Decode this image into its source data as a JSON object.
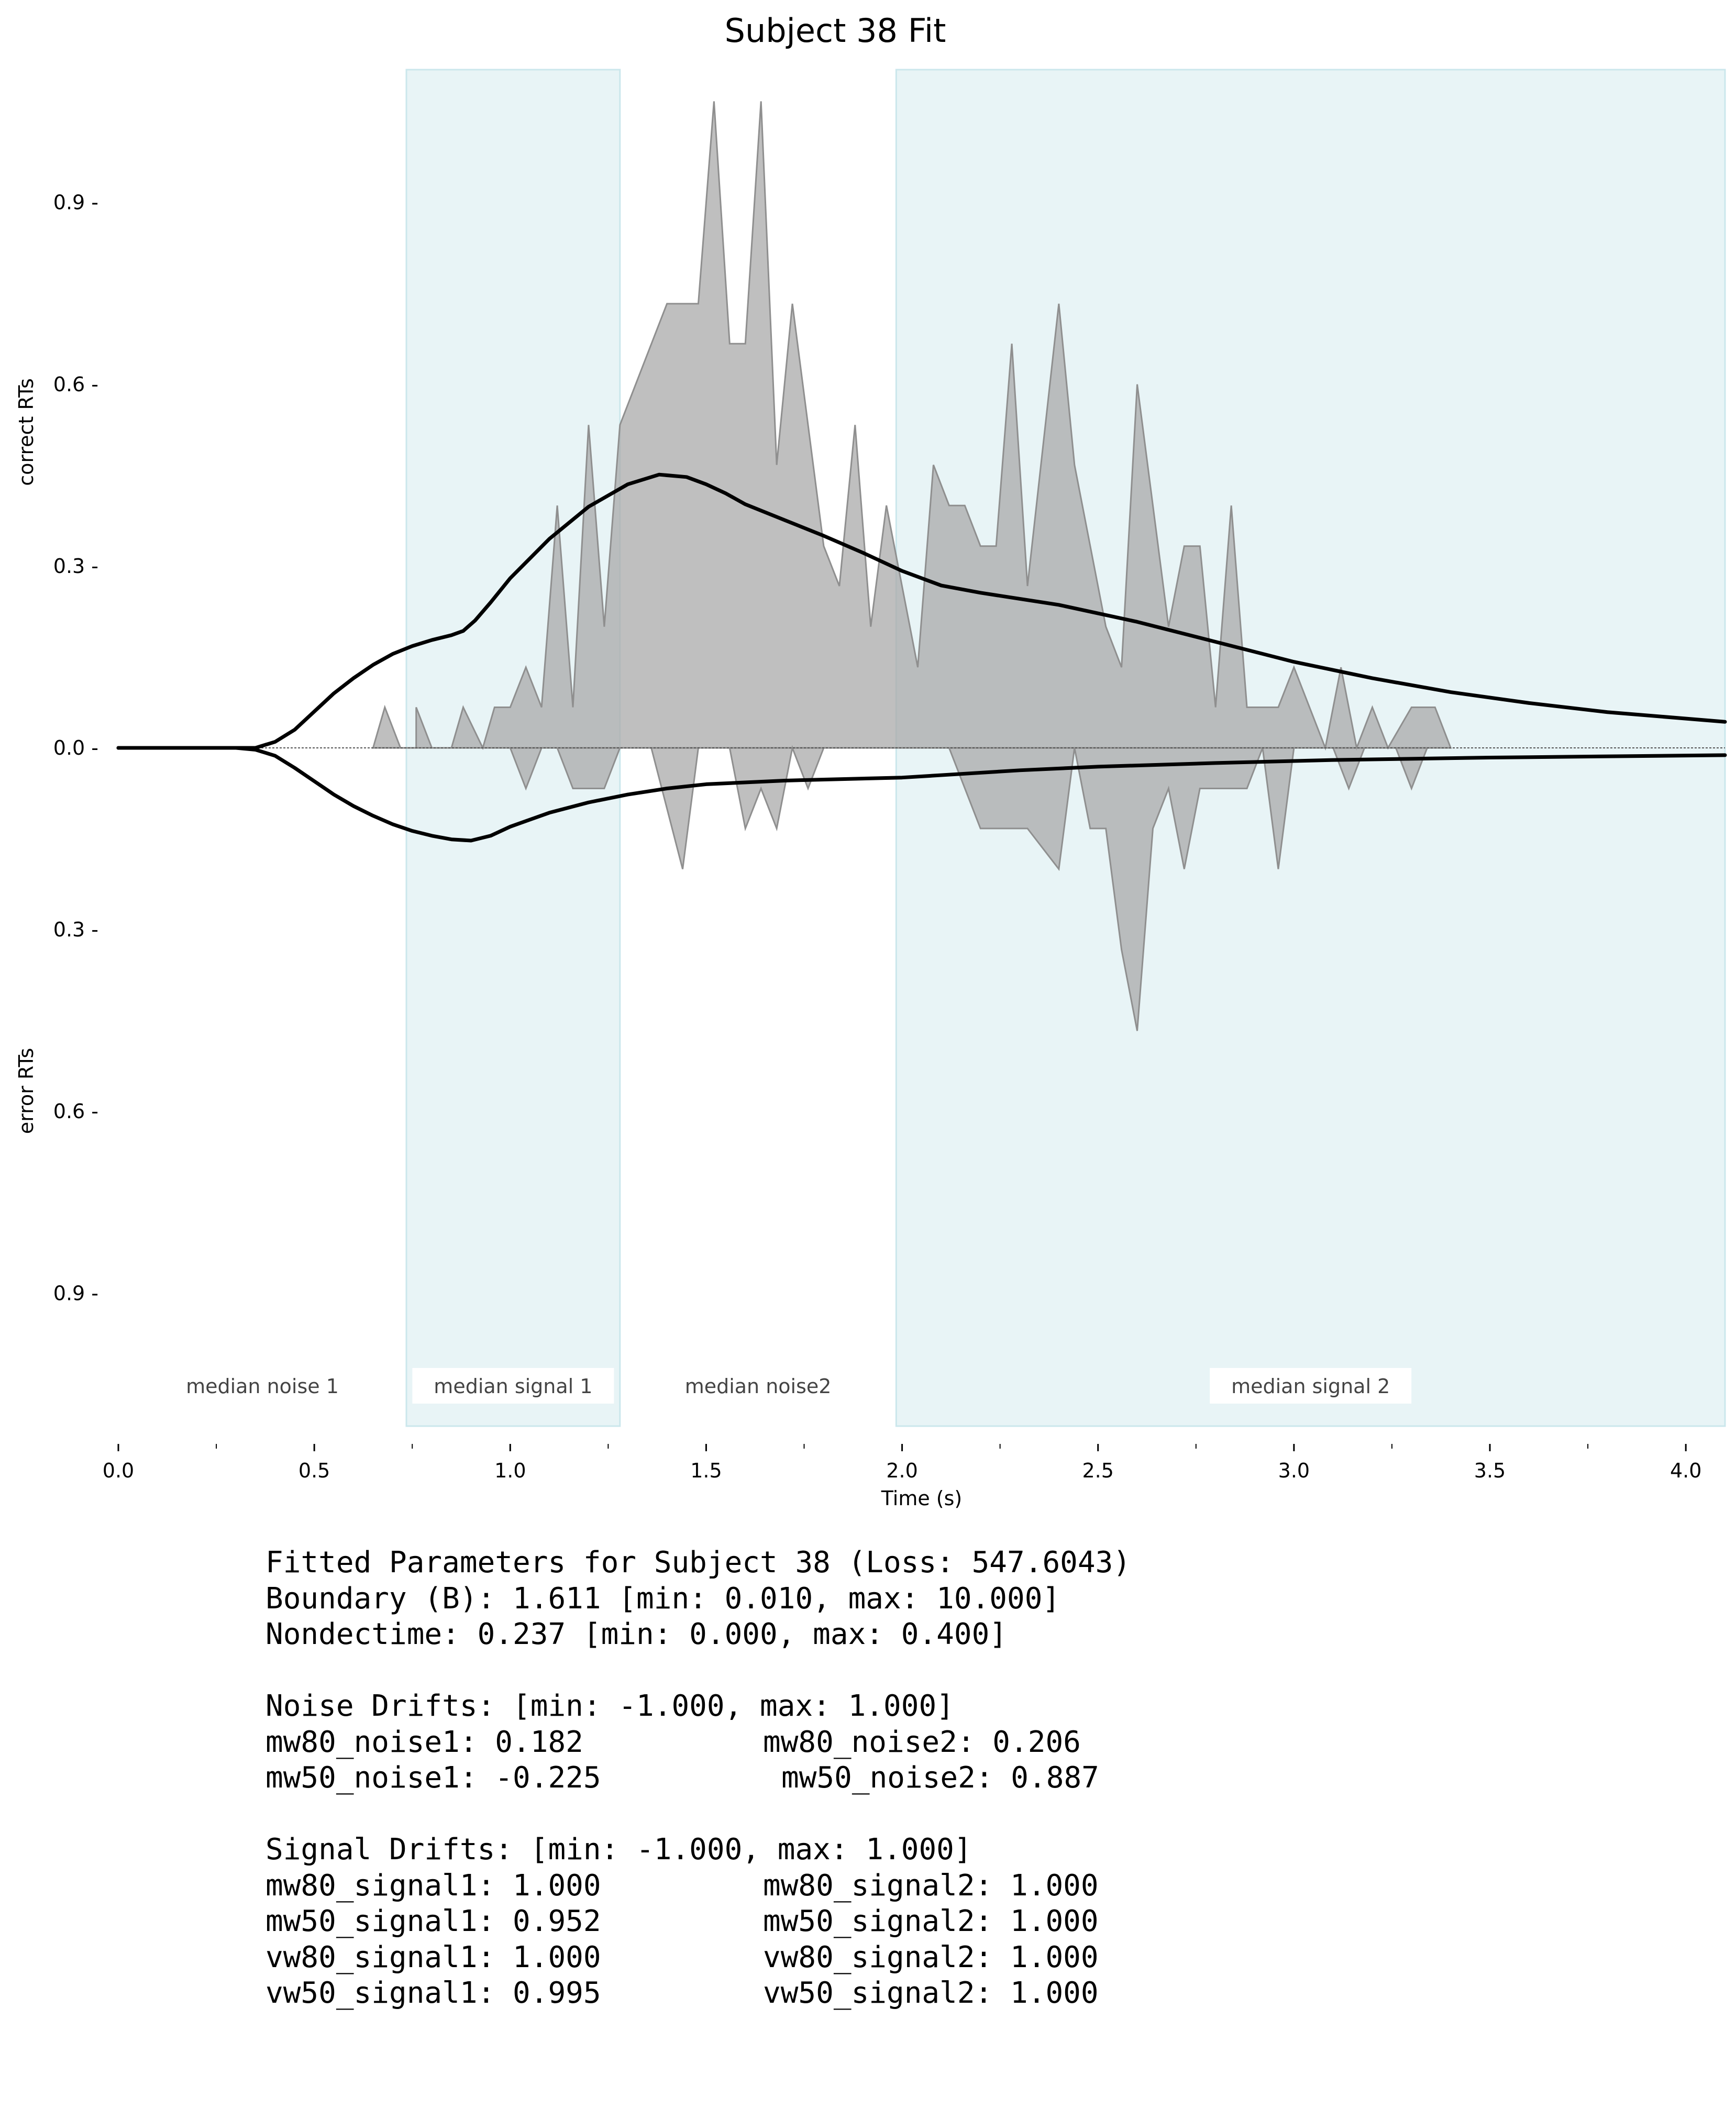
{
  "chart_data": {
    "type": "area",
    "title": "Subject 38 Fit",
    "xlabel": "Time (s)",
    "ylabel_top": "correct RTs",
    "ylabel_bottom": "error RTs",
    "xlim": [
      0.0,
      4.1
    ],
    "ylim": [
      -1.15,
      1.15
    ],
    "x_ticks": [
      0.0,
      0.5,
      1.0,
      1.5,
      2.0,
      2.5,
      3.0,
      3.5,
      4.0
    ],
    "x_tick_labels": [
      "0.0",
      "0.5",
      "1.0",
      "1.5",
      "2.0",
      "2.5",
      "3.0",
      "3.5",
      "4.0"
    ],
    "x_minor_ticks": [
      0.25,
      0.75,
      1.25,
      1.75,
      2.25,
      2.75,
      3.25,
      3.75
    ],
    "y_ticks": [
      0.9,
      0.6,
      0.3,
      0.0,
      -0.3,
      -0.6,
      -0.9
    ],
    "y_tick_labels": [
      "0.9 -",
      "0.6 -",
      "0.3 -",
      "0.0 -",
      "0.3 -",
      "0.6 -",
      "0.9 -"
    ],
    "grid": false,
    "colors": {
      "region_fill": "#e8f4f6",
      "region_edge": "#cbe7ec",
      "histogram_fill": "#a9a9a9",
      "histogram_edge": "#8f8f8f",
      "model_line": "#000000",
      "baseline": "#555555"
    },
    "regions": [
      {
        "label": "median noise 1",
        "x0": 0.0,
        "x1": 0.735,
        "shaded": false
      },
      {
        "label": "median signal 1",
        "x0": 0.735,
        "x1": 1.28,
        "shaded": true
      },
      {
        "label": "median noise2",
        "x0": 1.28,
        "x1": 1.985,
        "shaded": false
      },
      {
        "label": "median signal 2",
        "x0": 1.985,
        "x1": 4.1,
        "shaded": true
      }
    ],
    "series": [
      {
        "kind": "histogram_correct",
        "points": [
          [
            0.65,
            0.0
          ],
          [
            0.68,
            0.067
          ],
          [
            0.72,
            0.0
          ],
          [
            0.76,
            0.0
          ],
          [
            0.76,
            0.067
          ],
          [
            0.8,
            0.0
          ],
          [
            0.85,
            0.0
          ],
          [
            0.88,
            0.067
          ],
          [
            0.93,
            0.0
          ],
          [
            0.96,
            0.067
          ],
          [
            1.0,
            0.067
          ],
          [
            1.04,
            0.133
          ],
          [
            1.08,
            0.067
          ],
          [
            1.12,
            0.4
          ],
          [
            1.16,
            0.067
          ],
          [
            1.2,
            0.533
          ],
          [
            1.24,
            0.2
          ],
          [
            1.28,
            0.533
          ],
          [
            1.4,
            0.733
          ],
          [
            1.48,
            0.733
          ],
          [
            1.52,
            1.067
          ],
          [
            1.56,
            0.667
          ],
          [
            1.6,
            0.667
          ],
          [
            1.64,
            1.067
          ],
          [
            1.68,
            0.467
          ],
          [
            1.72,
            0.733
          ],
          [
            1.8,
            0.333
          ],
          [
            1.84,
            0.267
          ],
          [
            1.88,
            0.533
          ],
          [
            1.92,
            0.2
          ],
          [
            1.96,
            0.4
          ],
          [
            2.04,
            0.133
          ],
          [
            2.08,
            0.467
          ],
          [
            2.12,
            0.4
          ],
          [
            2.16,
            0.4
          ],
          [
            2.2,
            0.333
          ],
          [
            2.24,
            0.333
          ],
          [
            2.28,
            0.667
          ],
          [
            2.32,
            0.267
          ],
          [
            2.4,
            0.733
          ],
          [
            2.44,
            0.467
          ],
          [
            2.52,
            0.2
          ],
          [
            2.56,
            0.133
          ],
          [
            2.6,
            0.6
          ],
          [
            2.68,
            0.2
          ],
          [
            2.72,
            0.333
          ],
          [
            2.76,
            0.333
          ],
          [
            2.8,
            0.067
          ],
          [
            2.84,
            0.4
          ],
          [
            2.88,
            0.067
          ],
          [
            2.96,
            0.067
          ],
          [
            3.0,
            0.133
          ],
          [
            3.08,
            0.0
          ],
          [
            3.12,
            0.133
          ],
          [
            3.16,
            0.0
          ],
          [
            3.2,
            0.067
          ],
          [
            3.24,
            0.0
          ],
          [
            3.3,
            0.067
          ],
          [
            3.36,
            0.067
          ],
          [
            3.4,
            0.0
          ]
        ]
      },
      {
        "kind": "histogram_error",
        "points": [
          [
            1.0,
            0.0
          ],
          [
            1.04,
            -0.067
          ],
          [
            1.08,
            0.0
          ],
          [
            1.12,
            0.0
          ],
          [
            1.16,
            -0.067
          ],
          [
            1.24,
            -0.067
          ],
          [
            1.28,
            0.0
          ],
          [
            1.36,
            0.0
          ],
          [
            1.44,
            -0.2
          ],
          [
            1.48,
            0.0
          ],
          [
            1.56,
            0.0
          ],
          [
            1.6,
            -0.133
          ],
          [
            1.64,
            -0.067
          ],
          [
            1.68,
            -0.133
          ],
          [
            1.72,
            0.0
          ],
          [
            1.76,
            -0.067
          ],
          [
            1.8,
            0.0
          ],
          [
            2.12,
            0.0
          ],
          [
            2.2,
            -0.133
          ],
          [
            2.32,
            -0.133
          ],
          [
            2.4,
            -0.2
          ],
          [
            2.44,
            0.0
          ],
          [
            2.48,
            -0.133
          ],
          [
            2.52,
            -0.133
          ],
          [
            2.56,
            -0.333
          ],
          [
            2.6,
            -0.467
          ],
          [
            2.64,
            -0.133
          ],
          [
            2.68,
            -0.067
          ],
          [
            2.72,
            -0.2
          ],
          [
            2.76,
            -0.067
          ],
          [
            2.88,
            -0.067
          ],
          [
            2.92,
            0.0
          ],
          [
            2.96,
            -0.2
          ],
          [
            3.0,
            0.0
          ],
          [
            3.1,
            0.0
          ],
          [
            3.14,
            -0.067
          ],
          [
            3.18,
            0.0
          ],
          [
            3.26,
            0.0
          ],
          [
            3.3,
            -0.067
          ],
          [
            3.34,
            0.0
          ]
        ]
      },
      {
        "kind": "model_correct",
        "points": [
          [
            0.0,
            0.0
          ],
          [
            0.3,
            0.0
          ],
          [
            0.35,
            0.0
          ],
          [
            0.4,
            0.01
          ],
          [
            0.45,
            0.03
          ],
          [
            0.5,
            0.06
          ],
          [
            0.55,
            0.09
          ],
          [
            0.6,
            0.115
          ],
          [
            0.65,
            0.137
          ],
          [
            0.7,
            0.155
          ],
          [
            0.75,
            0.168
          ],
          [
            0.8,
            0.178
          ],
          [
            0.85,
            0.186
          ],
          [
            0.88,
            0.193
          ],
          [
            0.91,
            0.21
          ],
          [
            0.95,
            0.24
          ],
          [
            1.0,
            0.28
          ],
          [
            1.1,
            0.345
          ],
          [
            1.2,
            0.398
          ],
          [
            1.3,
            0.435
          ],
          [
            1.38,
            0.451
          ],
          [
            1.45,
            0.447
          ],
          [
            1.5,
            0.435
          ],
          [
            1.55,
            0.42
          ],
          [
            1.6,
            0.402
          ],
          [
            1.7,
            0.376
          ],
          [
            1.8,
            0.35
          ],
          [
            1.9,
            0.322
          ],
          [
            2.0,
            0.292
          ],
          [
            2.1,
            0.268
          ],
          [
            2.2,
            0.256
          ],
          [
            2.4,
            0.236
          ],
          [
            2.6,
            0.208
          ],
          [
            2.8,
            0.175
          ],
          [
            3.0,
            0.142
          ],
          [
            3.2,
            0.115
          ],
          [
            3.4,
            0.092
          ],
          [
            3.6,
            0.074
          ],
          [
            3.8,
            0.059
          ],
          [
            4.1,
            0.043
          ]
        ]
      },
      {
        "kind": "model_error",
        "points": [
          [
            0.0,
            0.0
          ],
          [
            0.3,
            0.0
          ],
          [
            0.35,
            -0.003
          ],
          [
            0.4,
            -0.013
          ],
          [
            0.45,
            -0.033
          ],
          [
            0.5,
            -0.055
          ],
          [
            0.55,
            -0.077
          ],
          [
            0.6,
            -0.096
          ],
          [
            0.65,
            -0.112
          ],
          [
            0.7,
            -0.126
          ],
          [
            0.75,
            -0.137
          ],
          [
            0.8,
            -0.145
          ],
          [
            0.85,
            -0.151
          ],
          [
            0.9,
            -0.153
          ],
          [
            0.95,
            -0.145
          ],
          [
            1.0,
            -0.13
          ],
          [
            1.1,
            -0.107
          ],
          [
            1.2,
            -0.09
          ],
          [
            1.3,
            -0.077
          ],
          [
            1.4,
            -0.067
          ],
          [
            1.5,
            -0.06
          ],
          [
            1.7,
            -0.054
          ],
          [
            2.0,
            -0.049
          ],
          [
            2.1,
            -0.045
          ],
          [
            2.3,
            -0.037
          ],
          [
            2.5,
            -0.031
          ],
          [
            2.8,
            -0.025
          ],
          [
            3.1,
            -0.02
          ],
          [
            3.5,
            -0.016
          ],
          [
            4.1,
            -0.012
          ]
        ]
      }
    ]
  },
  "params": {
    "header": "Fitted Parameters for Subject 38 (Loss: 547.6043)",
    "boundary": "Boundary (B): 1.611 [min: 0.010, max: 10.000]",
    "nondectime": "Nondectime: 0.237 [min: 0.000, max: 0.400]",
    "noise_header": "Noise Drifts: [min: -1.000, max: 1.000]",
    "noise_rows": [
      {
        "left": "mw80_noise1: 0.182",
        "right": "mw80_noise2: 0.206"
      },
      {
        "left": "mw50_noise1: -0.225",
        "right": "mw50_noise2: 0.887"
      }
    ],
    "signal_header": "Signal Drifts: [min: -1.000, max: 1.000]",
    "signal_rows": [
      {
        "left": "mw80_signal1: 1.000",
        "right": "mw80_signal2: 1.000"
      },
      {
        "left": "mw50_signal1: 0.952",
        "right": "mw50_signal2: 1.000"
      },
      {
        "left": "vw80_signal1: 1.000",
        "right": "vw80_signal2: 1.000"
      },
      {
        "left": "vw50_signal1: 0.995",
        "right": "vw50_signal2: 1.000"
      }
    ]
  }
}
